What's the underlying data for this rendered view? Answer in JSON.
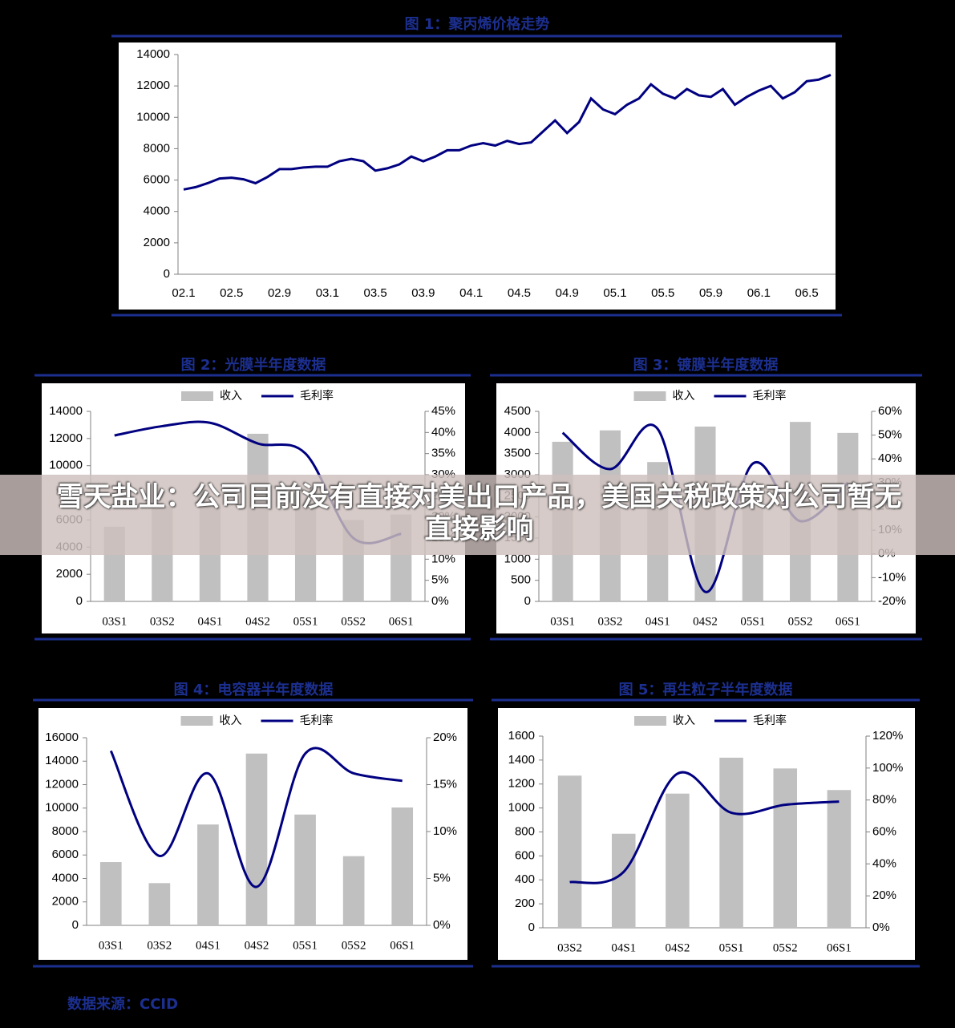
{
  "chart_data": [
    {
      "type": "line",
      "title": "图 1：聚丙烯价格走势",
      "categories": [
        "02.1",
        null,
        null,
        null,
        "02.5",
        null,
        null,
        null,
        "02.9",
        null,
        null,
        null,
        "03.1",
        null,
        null,
        null,
        "03.5",
        null,
        null,
        null,
        "03.9",
        null,
        null,
        null,
        "04.1",
        null,
        null,
        null,
        "04.5",
        null,
        null,
        null,
        "04.9",
        null,
        null,
        null,
        "05.1",
        null,
        null,
        null,
        "05.5",
        null,
        null,
        null,
        "05.9",
        null,
        null,
        null,
        "06.1",
        null,
        null,
        null,
        "06.5",
        null,
        null
      ],
      "values": [
        5400,
        5550,
        5800,
        6100,
        6150,
        6050,
        5800,
        6200,
        6700,
        6700,
        6800,
        6850,
        6850,
        7200,
        7350,
        7200,
        6600,
        6750,
        7000,
        7500,
        7200,
        7500,
        7900,
        7900,
        8200,
        8350,
        8200,
        8500,
        8300,
        8400,
        9100,
        9800,
        9000,
        9700,
        11200,
        10500,
        10200,
        10800,
        11200,
        12100,
        11500,
        11200,
        11800,
        11400,
        11300,
        11800,
        10800,
        11300,
        11700,
        12000,
        11200,
        11600,
        12300,
        12400,
        12700
      ],
      "color": "#000080",
      "ylim": [
        0,
        14000
      ],
      "yticks": [
        0,
        2000,
        4000,
        6000,
        8000,
        10000,
        12000,
        14000
      ]
    },
    {
      "type": "combo",
      "title": "图 2：光膜半年度数据",
      "categories": [
        "03S1",
        "03S2",
        "04S1",
        "04S2",
        "05S1",
        "05S2",
        "06S1"
      ],
      "series": [
        {
          "name": "收入",
          "kind": "bar",
          "color": "#c0c0c0",
          "values": [
            5500,
            7000,
            7200,
            12350,
            6900,
            6000,
            6400
          ]
        },
        {
          "name": "毛利率",
          "kind": "line",
          "axis": "y2",
          "color": "#000080",
          "values": [
            39.3,
            41.5,
            42.3,
            37.4,
            35,
            15,
            16
          ]
        }
      ],
      "ylim": [
        0,
        14000
      ],
      "yticks": [
        0,
        2000,
        4000,
        6000,
        8000,
        10000,
        12000,
        14000
      ],
      "y2lim": [
        0,
        45
      ],
      "y2ticks": [
        {
          "value": 0,
          "label": "0%"
        },
        {
          "value": 5,
          "label": "5%"
        },
        {
          "value": 10,
          "label": "10%"
        },
        {
          "value": 15,
          "label": "15%"
        },
        {
          "value": 20,
          "label": "20%"
        },
        {
          "value": 25,
          "label": "25%"
        },
        {
          "value": 30,
          "label": "30%"
        },
        {
          "value": 35,
          "label": "35%"
        },
        {
          "value": 40,
          "label": "40%"
        },
        {
          "value": 45,
          "label": "45%"
        }
      ],
      "legend": "top"
    },
    {
      "type": "combo",
      "title": "图 3：镀膜半年度数据",
      "categories": [
        "03S1",
        "03S2",
        "04S1",
        "04S2",
        "05S1",
        "05S2",
        "06S1"
      ],
      "series": [
        {
          "name": "收入",
          "kind": "bar",
          "color": "#c0c0c0",
          "values": [
            3780,
            4050,
            3300,
            4140,
            2300,
            4250,
            3990
          ]
        },
        {
          "name": "毛利率",
          "kind": "line",
          "axis": "y2",
          "color": "#000080",
          "values": [
            51,
            35.7,
            52.6,
            -16,
            38,
            13.8,
            30
          ]
        }
      ],
      "ylim": [
        0,
        4500
      ],
      "yticks": [
        0,
        500,
        1000,
        1500,
        2000,
        2500,
        3000,
        3500,
        4000,
        4500
      ],
      "y2lim": [
        -20,
        60
      ],
      "y2ticks": [
        {
          "value": -20,
          "label": "-20%"
        },
        {
          "value": -10,
          "label": "-10%"
        },
        {
          "value": 0,
          "label": "0%"
        },
        {
          "value": 10,
          "label": "10%"
        },
        {
          "value": 20,
          "label": "20%"
        },
        {
          "value": 30,
          "label": "30%"
        },
        {
          "value": 40,
          "label": "40%"
        },
        {
          "value": 50,
          "label": "50%"
        },
        {
          "value": 60,
          "label": "60%"
        }
      ],
      "legend": "top"
    },
    {
      "type": "combo",
      "title": "图 4：电容器半年度数据",
      "categories": [
        "03S1",
        "03S2",
        "04S1",
        "04S2",
        "05S1",
        "05S2",
        "06S1"
      ],
      "series": [
        {
          "name": "收入",
          "kind": "bar",
          "color": "#c0c0c0",
          "values": [
            5400,
            3600,
            8600,
            14650,
            9450,
            5900,
            10050
          ]
        },
        {
          "name": "毛利率",
          "kind": "line",
          "axis": "y2",
          "color": "#000080",
          "values": [
            18.6,
            7.4,
            16.2,
            4.1,
            18.3,
            16.2,
            15.4
          ]
        }
      ],
      "ylim": [
        0,
        16000
      ],
      "yticks": [
        0,
        2000,
        4000,
        6000,
        8000,
        10000,
        12000,
        14000,
        16000
      ],
      "y2lim": [
        0,
        20
      ],
      "y2ticks": [
        {
          "value": 0,
          "label": "0%"
        },
        {
          "value": 5,
          "label": "5%"
        },
        {
          "value": 10,
          "label": "10%"
        },
        {
          "value": 15,
          "label": "15%"
        },
        {
          "value": 20,
          "label": "20%"
        }
      ],
      "legend": "top"
    },
    {
      "type": "combo",
      "title": "图 5：再生粒子半年度数据",
      "categories": [
        "03S2",
        "04S1",
        "04S2",
        "05S1",
        "05S2",
        "06S1"
      ],
      "series": [
        {
          "name": "收入",
          "kind": "bar",
          "color": "#c0c0c0",
          "values": [
            1270,
            785,
            1120,
            1420,
            1330,
            1150
          ]
        },
        {
          "name": "毛利率",
          "kind": "line",
          "axis": "y2",
          "color": "#000080",
          "values": [
            28.6,
            35,
            96.5,
            72,
            77,
            79
          ]
        }
      ],
      "ylim": [
        0,
        1600
      ],
      "yticks": [
        0,
        200,
        400,
        600,
        800,
        1000,
        1200,
        1400,
        1600
      ],
      "y2lim": [
        0,
        120
      ],
      "y2ticks": [
        {
          "value": 0,
          "label": "0%"
        },
        {
          "value": 20,
          "label": "20%"
        },
        {
          "value": 40,
          "label": "40%"
        },
        {
          "value": 60,
          "label": "60%"
        },
        {
          "value": 80,
          "label": "80%"
        },
        {
          "value": 100,
          "label": "100%"
        },
        {
          "value": 120,
          "label": "120%"
        }
      ],
      "legend": "top"
    }
  ],
  "banner": "雪天盐业：公司目前没有直接对美出口产品，美国关税政策对公司暂无直接影响",
  "source": "数据来源：CCID"
}
